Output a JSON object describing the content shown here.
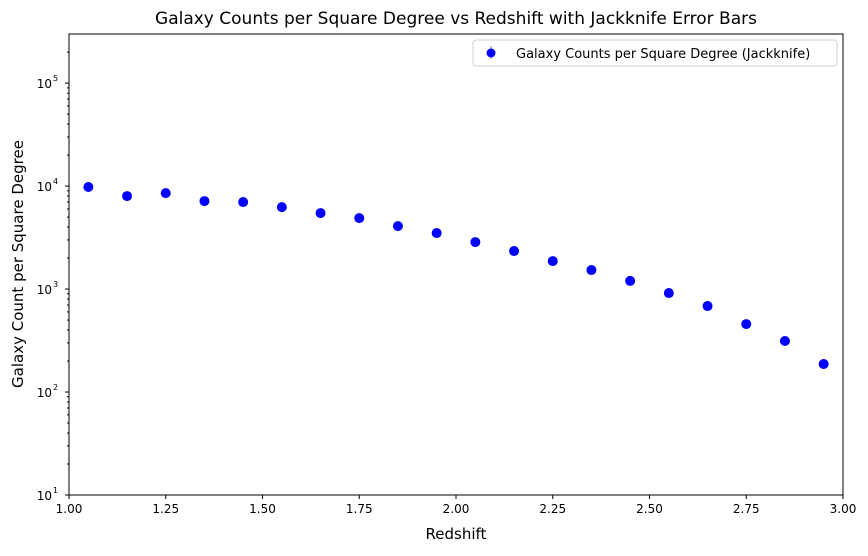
{
  "chart_data": {
    "type": "scatter",
    "title": "Galaxy Counts per Square Degree vs Redshift with Jackknife Error Bars",
    "xlabel": "Redshift",
    "ylabel": "Galaxy Count per Square Degree",
    "xlim": [
      1.0,
      3.0
    ],
    "ylim": [
      10,
      300000
    ],
    "yscale": "log",
    "grid": false,
    "legend_placement": "top-right",
    "x_ticks": [
      "1.00",
      "1.25",
      "1.50",
      "1.75",
      "2.00",
      "2.25",
      "2.50",
      "2.75",
      "3.00"
    ],
    "y_ticks": [
      {
        "value": 10,
        "label": "10",
        "exp": "1"
      },
      {
        "value": 100,
        "label": "10",
        "exp": "2"
      },
      {
        "value": 1000,
        "label": "10",
        "exp": "3"
      },
      {
        "value": 10000,
        "label": "10",
        "exp": "4"
      },
      {
        "value": 100000,
        "label": "10",
        "exp": "5"
      }
    ],
    "marker_color": "#0000ff",
    "errorbar_color": "#808080",
    "series": [
      {
        "name": "Galaxy Counts per Square Degree (Jackknife)",
        "x": [
          1.05,
          1.15,
          1.25,
          1.35,
          1.45,
          1.55,
          1.65,
          1.75,
          1.85,
          1.95,
          2.05,
          2.15,
          2.25,
          2.35,
          2.45,
          2.55,
          2.65,
          2.75,
          2.85,
          2.95
        ],
        "y": [
          9800,
          8000,
          8550,
          7150,
          7000,
          6250,
          5470,
          4890,
          4090,
          3500,
          2860,
          2340,
          1870,
          1530,
          1200,
          915,
          684,
          457,
          313,
          187
        ]
      }
    ]
  }
}
